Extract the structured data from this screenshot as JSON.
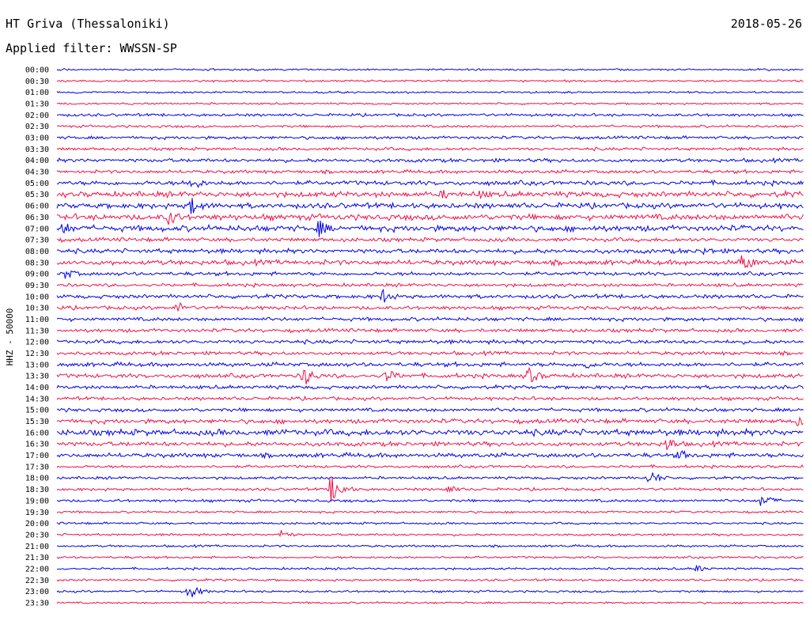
{
  "header": {
    "station": "HT Griva (Thessaloniki)",
    "date": "2018-05-26",
    "filter": "Applied filter: WWSSN-SP"
  },
  "chart_data": {
    "type": "line",
    "title": "HT Griva (Thessaloniki)",
    "subtitle": "Applied filter: WWSSN-SP",
    "date": "2018-05-26",
    "ylabel": "HHZ - 50000",
    "colors": {
      "blue": "#0000e6",
      "red": "#f0104a"
    },
    "rows": [
      {
        "label": "00:00",
        "color": "blue",
        "activity": 0.15
      },
      {
        "label": "00:30",
        "color": "red",
        "activity": 0.18
      },
      {
        "label": "01:00",
        "color": "blue",
        "activity": 0.15
      },
      {
        "label": "01:30",
        "color": "red",
        "activity": 0.15
      },
      {
        "label": "02:00",
        "color": "blue",
        "activity": 0.3
      },
      {
        "label": "02:30",
        "color": "red",
        "activity": 0.25
      },
      {
        "label": "03:00",
        "color": "blue",
        "activity": 0.35
      },
      {
        "label": "03:30",
        "color": "red",
        "activity": 0.35
      },
      {
        "label": "04:00",
        "color": "blue",
        "activity": 0.45
      },
      {
        "label": "04:30",
        "color": "red",
        "activity": 0.4
      },
      {
        "label": "05:00",
        "color": "blue",
        "activity": 0.6
      },
      {
        "label": "05:30",
        "color": "red",
        "activity": 0.8
      },
      {
        "label": "06:00",
        "color": "blue",
        "activity": 0.75
      },
      {
        "label": "06:30",
        "color": "red",
        "activity": 0.85
      },
      {
        "label": "07:00",
        "color": "blue",
        "activity": 0.85
      },
      {
        "label": "07:30",
        "color": "red",
        "activity": 0.5
      },
      {
        "label": "08:00",
        "color": "blue",
        "activity": 0.6
      },
      {
        "label": "08:30",
        "color": "red",
        "activity": 0.7
      },
      {
        "label": "09:00",
        "color": "blue",
        "activity": 0.45
      },
      {
        "label": "09:30",
        "color": "red",
        "activity": 0.4
      },
      {
        "label": "10:00",
        "color": "blue",
        "activity": 0.5
      },
      {
        "label": "10:30",
        "color": "red",
        "activity": 0.45
      },
      {
        "label": "11:00",
        "color": "blue",
        "activity": 0.45
      },
      {
        "label": "11:30",
        "color": "red",
        "activity": 0.45
      },
      {
        "label": "12:00",
        "color": "blue",
        "activity": 0.5
      },
      {
        "label": "12:30",
        "color": "red",
        "activity": 0.45
      },
      {
        "label": "13:00",
        "color": "blue",
        "activity": 0.55
      },
      {
        "label": "13:30",
        "color": "red",
        "activity": 0.55
      },
      {
        "label": "14:00",
        "color": "blue",
        "activity": 0.45
      },
      {
        "label": "14:30",
        "color": "red",
        "activity": 0.4
      },
      {
        "label": "15:00",
        "color": "blue",
        "activity": 0.45
      },
      {
        "label": "15:30",
        "color": "red",
        "activity": 0.6
      },
      {
        "label": "16:00",
        "color": "blue",
        "activity": 0.9
      },
      {
        "label": "16:30",
        "color": "red",
        "activity": 0.6
      },
      {
        "label": "17:00",
        "color": "blue",
        "activity": 0.6
      },
      {
        "label": "17:30",
        "color": "red",
        "activity": 0.3
      },
      {
        "label": "18:00",
        "color": "blue",
        "activity": 0.3
      },
      {
        "label": "18:30",
        "color": "red",
        "activity": 0.3
      },
      {
        "label": "19:00",
        "color": "blue",
        "activity": 0.3
      },
      {
        "label": "19:30",
        "color": "red",
        "activity": 0.2
      },
      {
        "label": "20:00",
        "color": "blue",
        "activity": 0.2
      },
      {
        "label": "20:30",
        "color": "red",
        "activity": 0.2
      },
      {
        "label": "21:00",
        "color": "blue",
        "activity": 0.2
      },
      {
        "label": "21:30",
        "color": "red",
        "activity": 0.2
      },
      {
        "label": "22:00",
        "color": "blue",
        "activity": 0.2
      },
      {
        "label": "22:30",
        "color": "red",
        "activity": 0.2
      },
      {
        "label": "23:00",
        "color": "blue",
        "activity": 0.2
      },
      {
        "label": "23:30",
        "color": "red",
        "activity": 0.15
      }
    ],
    "events": [
      {
        "row": "06:30",
        "minute": 4.5,
        "amplitude": 12
      },
      {
        "row": "07:00",
        "minute": 0.2,
        "amplitude": 10
      },
      {
        "row": "07:00",
        "minute": 10.5,
        "amplitude": 12
      },
      {
        "row": "05:00",
        "minute": 5.4,
        "amplitude": 10
      },
      {
        "row": "06:00",
        "minute": 5.4,
        "amplitude": 12
      },
      {
        "row": "05:30",
        "minute": 15.5,
        "amplitude": 7
      },
      {
        "row": "05:30",
        "minute": 17,
        "amplitude": 7
      },
      {
        "row": "08:30",
        "minute": 27.5,
        "amplitude": 14
      },
      {
        "row": "09:00",
        "minute": 0.3,
        "amplitude": 8
      },
      {
        "row": "10:00",
        "minute": 13.1,
        "amplitude": 10
      },
      {
        "row": "10:30",
        "minute": 4.8,
        "amplitude": 9
      },
      {
        "row": "13:30",
        "minute": 9.9,
        "amplitude": 14
      },
      {
        "row": "13:30",
        "minute": 13.2,
        "amplitude": 10
      },
      {
        "row": "13:30",
        "minute": 18.9,
        "amplitude": 12
      },
      {
        "row": "13:00",
        "minute": 21.2,
        "amplitude": 7
      },
      {
        "row": "16:30",
        "minute": 24.5,
        "amplitude": 10
      },
      {
        "row": "17:00",
        "minute": 25,
        "amplitude": 8
      },
      {
        "row": "18:30",
        "minute": 11,
        "amplitude": 18
      },
      {
        "row": "18:30",
        "minute": 15.6,
        "amplitude": 7
      },
      {
        "row": "18:00",
        "minute": 23.8,
        "amplitude": 10
      },
      {
        "row": "19:00",
        "minute": 28.3,
        "amplitude": 9
      },
      {
        "row": "20:30",
        "minute": 9,
        "amplitude": 6
      },
      {
        "row": "23:00",
        "minute": 5.3,
        "amplitude": 10
      },
      {
        "row": "22:00",
        "minute": 25.7,
        "amplitude": 5
      },
      {
        "row": "15:30",
        "minute": 29.7,
        "amplitude": 8
      },
      {
        "row": "08:00",
        "minute": 26,
        "amplitude": 6
      }
    ],
    "xlim": [
      0,
      30
    ],
    "grid": false,
    "legend": "none"
  }
}
